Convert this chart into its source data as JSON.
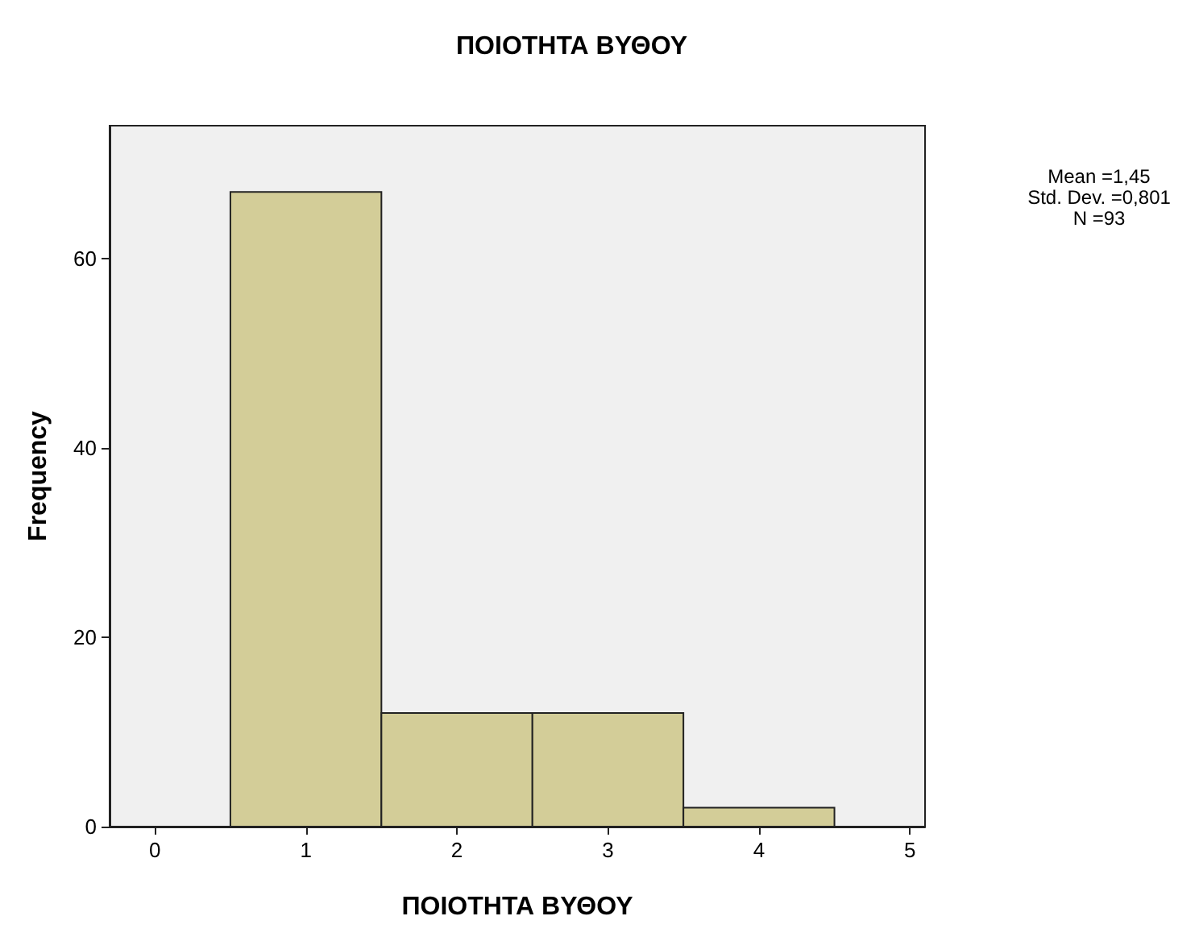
{
  "chart_data": {
    "type": "histogram",
    "title": "ΠΟΙΟΤΗΤΑ ΒΥΘΟΥ",
    "xlabel": "ΠΟΙΟΤΗΤΑ ΒΥΘΟΥ",
    "ylabel": "Frequency",
    "bins": [
      0.5,
      1.5,
      2.5,
      3.5,
      4.5
    ],
    "values": [
      67,
      12,
      12,
      2
    ],
    "color": "#d3cd98",
    "xlim": [
      -0.3,
      5.1
    ],
    "xticks": [
      0,
      1,
      2,
      3,
      4,
      5
    ],
    "ylim": [
      0,
      74
    ],
    "yticks": [
      0,
      20,
      40,
      60
    ],
    "grid": false,
    "annotations": [
      "Mean =1,45",
      "Std. Dev. =0,801",
      "N =93"
    ]
  }
}
